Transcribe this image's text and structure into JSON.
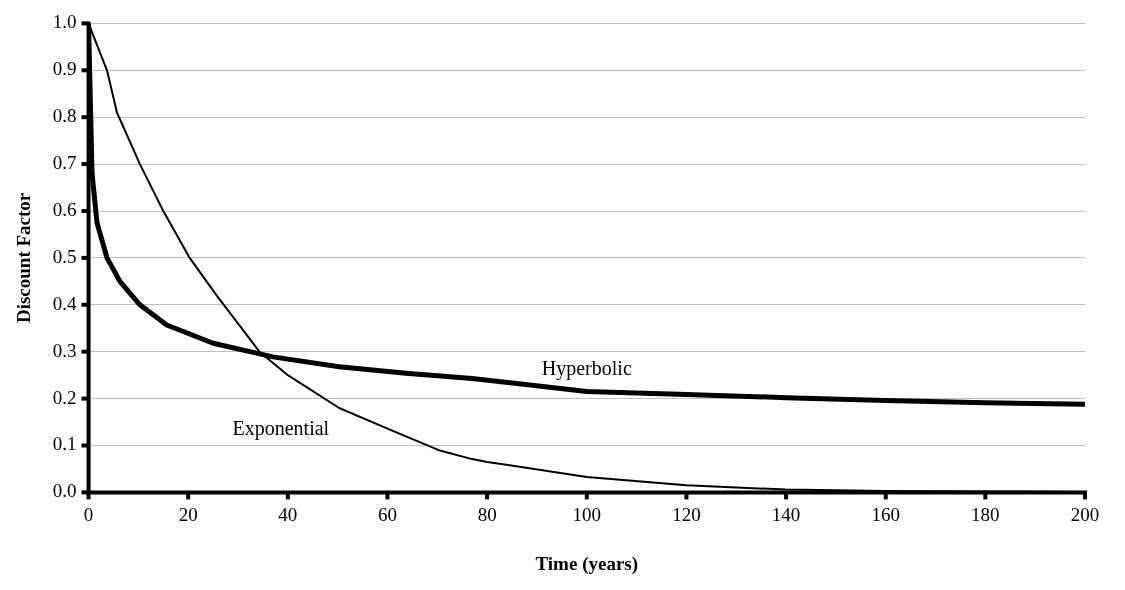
{
  "chart_data": {
    "type": "line",
    "xlabel": "Time (years)",
    "ylabel": "Discount Factor",
    "xlim": [
      0,
      200
    ],
    "xticks": [
      0,
      20,
      40,
      60,
      80,
      100,
      120,
      140,
      160,
      180,
      200
    ],
    "ylim": [
      0,
      1
    ],
    "yticks": [
      {
        "value": 0,
        "label": "0.0"
      },
      {
        "value": 0.1,
        "label": "0.1"
      },
      {
        "value": 0.2,
        "label": "0.2"
      },
      {
        "value": 0.3,
        "label": "0.3"
      },
      {
        "value": 0.4,
        "label": "0.4"
      },
      {
        "value": 0.5,
        "label": "0.5"
      },
      {
        "value": 0.6,
        "label": "0.6"
      },
      {
        "value": 0.7,
        "label": "0.7"
      },
      {
        "value": 0.8,
        "label": "0.8"
      },
      {
        "value": 0.9,
        "label": "0.9"
      },
      {
        "value": 1,
        "label": "1.0"
      }
    ],
    "grid": "y",
    "legend": false,
    "marker": "none",
    "line_style": "solid",
    "series": [
      {
        "name": "Exponential",
        "color": "#000000",
        "x": [
          0,
          3.7,
          5.7,
          10.3,
          15,
          20.3,
          25.7,
          34.3,
          40,
          50.3,
          60,
          70.3,
          77,
          80,
          100,
          120,
          140,
          160,
          180,
          200
        ],
        "values": [
          1,
          0.9,
          0.81,
          0.7,
          0.6,
          0.5,
          0.42,
          0.3,
          0.25,
          0.18,
          0.136,
          0.09,
          0.071,
          0.065,
          0.033,
          0.015,
          0.006,
          0.003,
          0.002,
          0.001
        ]
      },
      {
        "name": "Hyperbolic",
        "color": "#000000",
        "x": [
          0,
          0.7,
          1.7,
          3.7,
          6.3,
          10.3,
          15.7,
          25,
          37,
          50.3,
          63.7,
          77,
          100,
          120,
          140,
          160,
          180,
          200
        ],
        "values": [
          1,
          0.68,
          0.575,
          0.5,
          0.45,
          0.4,
          0.357,
          0.318,
          0.289,
          0.268,
          0.254,
          0.243,
          0.215,
          0.209,
          0.202,
          0.196,
          0.191,
          0.188
        ]
      }
    ]
  }
}
